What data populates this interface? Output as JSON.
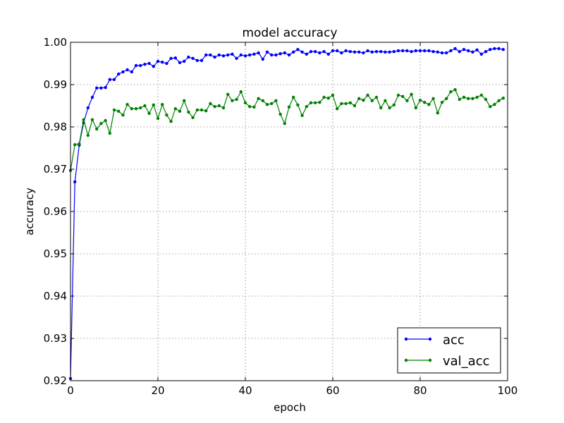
{
  "chart_data": {
    "type": "line",
    "title": "model accuracy",
    "xlabel": "epoch",
    "ylabel": "accuracy",
    "xlim": [
      0,
      100
    ],
    "ylim": [
      0.92,
      1.0
    ],
    "xticks": [
      0,
      20,
      40,
      60,
      80,
      100
    ],
    "yticks": [
      0.92,
      0.93,
      0.94,
      0.95,
      0.96,
      0.97,
      0.98,
      0.99,
      1.0
    ],
    "ytick_labels": [
      "0.92",
      "0.93",
      "0.94",
      "0.95",
      "0.96",
      "0.97",
      "0.98",
      "0.99",
      "1.00"
    ],
    "grid": true,
    "legend_position": "lower-right",
    "series": [
      {
        "name": "acc",
        "color": "#0000ff",
        "x": [
          0,
          1,
          2,
          3,
          4,
          5,
          6,
          7,
          8,
          9,
          10,
          11,
          12,
          13,
          14,
          15,
          16,
          17,
          18,
          19,
          20,
          21,
          22,
          23,
          24,
          25,
          26,
          27,
          28,
          29,
          30,
          31,
          32,
          33,
          34,
          35,
          36,
          37,
          38,
          39,
          40,
          41,
          42,
          43,
          44,
          45,
          46,
          47,
          48,
          49,
          50,
          51,
          52,
          53,
          54,
          55,
          56,
          57,
          58,
          59,
          60,
          61,
          62,
          63,
          64,
          65,
          66,
          67,
          68,
          69,
          70,
          71,
          72,
          73,
          74,
          75,
          76,
          77,
          78,
          79,
          80,
          81,
          82,
          83,
          84,
          85,
          86,
          87,
          88,
          89,
          90,
          91,
          92,
          93,
          94,
          95,
          96,
          97,
          98,
          99
        ],
        "values": [
          0.9205,
          0.967,
          0.9757,
          0.981,
          0.9845,
          0.987,
          0.9892,
          0.9892,
          0.9893,
          0.9912,
          0.9912,
          0.9925,
          0.993,
          0.9935,
          0.993,
          0.9945,
          0.9945,
          0.9948,
          0.995,
          0.9943,
          0.9955,
          0.9953,
          0.995,
          0.9962,
          0.9963,
          0.9952,
          0.9955,
          0.9965,
          0.9962,
          0.9957,
          0.9957,
          0.997,
          0.997,
          0.9965,
          0.997,
          0.9968,
          0.997,
          0.9972,
          0.9962,
          0.997,
          0.9968,
          0.997,
          0.9972,
          0.9975,
          0.996,
          0.9977,
          0.997,
          0.997,
          0.9973,
          0.9975,
          0.997,
          0.9977,
          0.9983,
          0.9977,
          0.9972,
          0.9978,
          0.9978,
          0.9975,
          0.9978,
          0.9972,
          0.998,
          0.998,
          0.9975,
          0.998,
          0.9978,
          0.9977,
          0.9977,
          0.9975,
          0.998,
          0.9977,
          0.9978,
          0.9978,
          0.9977,
          0.9977,
          0.9978,
          0.998,
          0.998,
          0.998,
          0.9978,
          0.998,
          0.998,
          0.998,
          0.998,
          0.9978,
          0.9977,
          0.9975,
          0.9975,
          0.998,
          0.9985,
          0.9978,
          0.9983,
          0.998,
          0.9977,
          0.9982,
          0.9972,
          0.9978,
          0.9983,
          0.9985,
          0.9985,
          0.9983
        ]
      },
      {
        "name": "val_acc",
        "color": "#008000",
        "x": [
          0,
          1,
          2,
          3,
          4,
          5,
          6,
          7,
          8,
          9,
          10,
          11,
          12,
          13,
          14,
          15,
          16,
          17,
          18,
          19,
          20,
          21,
          22,
          23,
          24,
          25,
          26,
          27,
          28,
          29,
          30,
          31,
          32,
          33,
          34,
          35,
          36,
          37,
          38,
          39,
          40,
          41,
          42,
          43,
          44,
          45,
          46,
          47,
          48,
          49,
          50,
          51,
          52,
          53,
          54,
          55,
          56,
          57,
          58,
          59,
          60,
          61,
          62,
          63,
          64,
          65,
          66,
          67,
          68,
          69,
          70,
          71,
          72,
          73,
          74,
          75,
          76,
          77,
          78,
          79,
          80,
          81,
          82,
          83,
          84,
          85,
          86,
          87,
          88,
          89,
          90,
          91,
          92,
          93,
          94,
          95,
          96,
          97,
          98,
          99
        ],
        "values": [
          0.9697,
          0.9758,
          0.976,
          0.9817,
          0.978,
          0.9817,
          0.9795,
          0.9808,
          0.9815,
          0.9785,
          0.984,
          0.9837,
          0.9828,
          0.9853,
          0.9843,
          0.9843,
          0.9845,
          0.985,
          0.9832,
          0.9852,
          0.982,
          0.9853,
          0.9828,
          0.9813,
          0.9843,
          0.9837,
          0.9862,
          0.9835,
          0.9822,
          0.984,
          0.984,
          0.9838,
          0.9855,
          0.9848,
          0.985,
          0.9845,
          0.9877,
          0.9862,
          0.9865,
          0.9883,
          0.9857,
          0.9848,
          0.9847,
          0.9867,
          0.9862,
          0.9853,
          0.9855,
          0.9862,
          0.983,
          0.9808,
          0.9847,
          0.987,
          0.9852,
          0.9827,
          0.9848,
          0.9857,
          0.9857,
          0.9858,
          0.987,
          0.9868,
          0.9875,
          0.9843,
          0.9855,
          0.9855,
          0.9857,
          0.985,
          0.9867,
          0.9863,
          0.9875,
          0.9862,
          0.987,
          0.9845,
          0.9862,
          0.9845,
          0.9852,
          0.9875,
          0.9872,
          0.9862,
          0.9877,
          0.9845,
          0.9863,
          0.9858,
          0.9853,
          0.9867,
          0.9833,
          0.9858,
          0.9867,
          0.9883,
          0.9888,
          0.9865,
          0.987,
          0.9867,
          0.9867,
          0.987,
          0.9875,
          0.9865,
          0.9848,
          0.9853,
          0.9862,
          0.9868
        ]
      }
    ]
  }
}
